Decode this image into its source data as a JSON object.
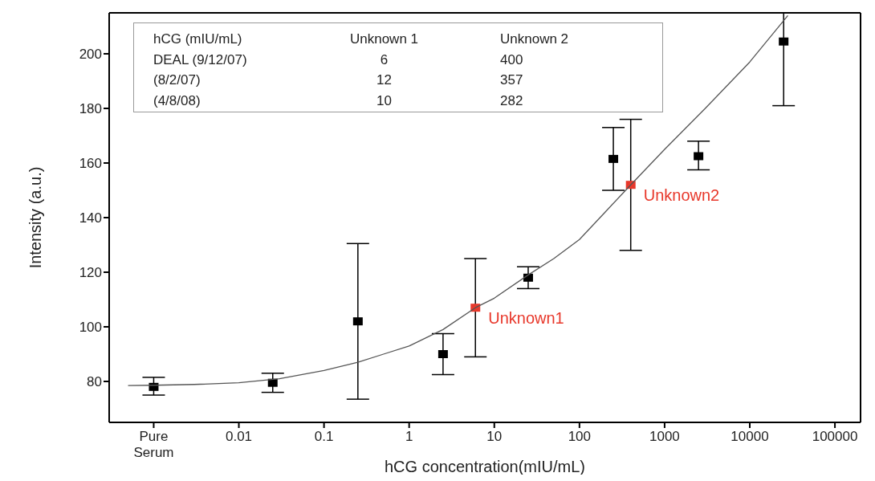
{
  "chart_data": {
    "type": "scatter",
    "xlabel": "hCG concentration(mIU/mL)",
    "ylabel": "Intensity (a.u.)",
    "log": "x",
    "marker": "square",
    "xlim": [
      0.0003,
      200000
    ],
    "ylim": [
      65,
      215
    ],
    "xticks": [
      {
        "value": 0.001,
        "label": "Pure Serum"
      },
      0.01,
      0.1,
      1,
      10,
      100,
      1000,
      10000,
      100000
    ],
    "yticks": [
      80,
      100,
      120,
      140,
      160,
      180,
      200
    ],
    "series": [
      {
        "color": "#000000",
        "x": [
          0.001,
          0.025,
          0.25,
          2.5,
          25,
          250,
          2500,
          25000
        ],
        "values": [
          78,
          79.5,
          102,
          90,
          118,
          161.5,
          162.5,
          204.5
        ],
        "errors": [
          [
            75,
            81.5
          ],
          [
            76,
            83
          ],
          [
            73.5,
            130.5
          ],
          [
            82.5,
            97.5
          ],
          [
            114,
            122
          ],
          [
            150,
            173
          ],
          [
            157.5,
            168
          ],
          [
            181,
            215
          ]
        ]
      },
      {
        "color": "#e8382b",
        "x": [
          6,
          400
        ],
        "values": [
          107,
          152
        ],
        "errors": [
          [
            89,
            125
          ],
          [
            128,
            176
          ]
        ]
      },
      {
        "type": "line",
        "color": "#555555",
        "marker": "none",
        "x": [
          0.0005,
          0.001,
          0.003,
          0.01,
          0.03,
          0.1,
          0.25,
          0.5,
          1,
          2.5,
          6,
          10,
          25,
          50,
          100,
          200,
          400,
          1000,
          3000,
          10000,
          28000
        ],
        "values": [
          78.5,
          78.6,
          78.9,
          79.5,
          81,
          84,
          87,
          90,
          93,
          99,
          107,
          110.5,
          119,
          125,
          132,
          142,
          152,
          165,
          180,
          197,
          214
        ]
      }
    ],
    "annotations": [
      "hCG (mIU/mL)",
      "Unknown 1",
      "Unknown 2",
      "DEAL (9/12/07)",
      "6",
      "400",
      "(8/2/07)",
      "12",
      "357",
      "(4/8/08)",
      "10",
      "282",
      {
        "text": "Unknown1",
        "x": 6,
        "y": 107
      },
      {
        "text": "Unknown2",
        "x": 400,
        "y": 152
      }
    ]
  }
}
